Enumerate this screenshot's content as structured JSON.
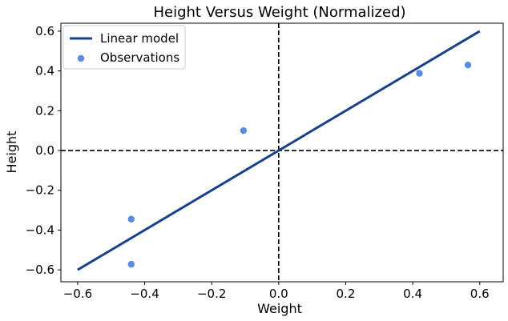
{
  "chart_data": {
    "type": "scatter",
    "title": "Height Versus Weight (Normalized)",
    "xlabel": "Weight",
    "ylabel": "Height",
    "xlim": [
      -0.65,
      0.67
    ],
    "ylim": [
      -0.66,
      0.64
    ],
    "xticks": [
      -0.6,
      -0.4,
      -0.2,
      0.0,
      0.2,
      0.4,
      0.6
    ],
    "yticks": [
      -0.6,
      -0.4,
      -0.2,
      0.0,
      0.2,
      0.4,
      0.6
    ],
    "xtick_labels": [
      "−0.6",
      "−0.4",
      "−0.2",
      "0.0",
      "0.2",
      "0.4",
      "0.6"
    ],
    "ytick_labels": [
      "−0.6",
      "−0.4",
      "−0.2",
      "0.0",
      "0.2",
      "0.4",
      "0.6"
    ],
    "grid": false,
    "legend_position": "top-left",
    "reference_lines": {
      "x": 0,
      "y": 0,
      "style": "dashed",
      "color": "#000000"
    },
    "series": [
      {
        "name": "Linear model",
        "kind": "line",
        "color": "#1a4288",
        "x": [
          -0.6,
          0.6
        ],
        "y": [
          -0.6,
          0.6
        ]
      },
      {
        "name": "Observations",
        "kind": "scatter",
        "color": "#5b8bdc",
        "x": [
          -0.44,
          -0.44,
          -0.105,
          0.42,
          0.565
        ],
        "y": [
          -0.345,
          -0.572,
          0.1,
          0.388,
          0.43
        ]
      }
    ]
  }
}
